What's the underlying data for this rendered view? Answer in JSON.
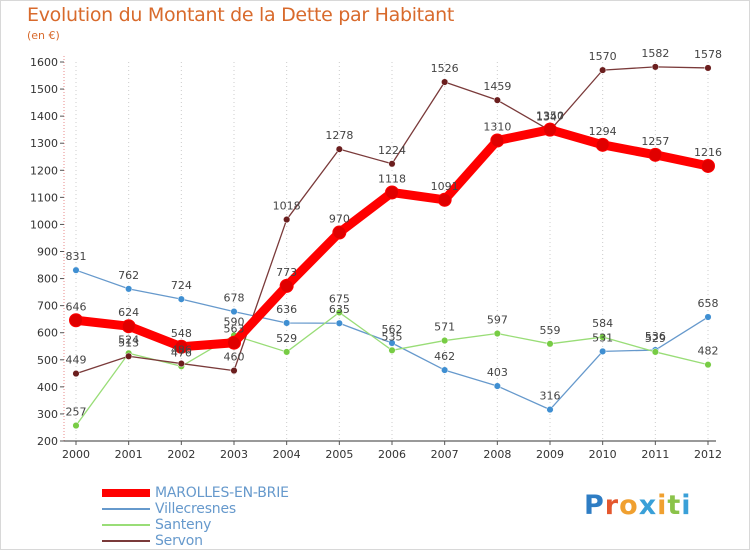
{
  "title": "Evolution du Montant de la Dette par Habitant",
  "subtitle": "(en €)",
  "logo": {
    "text": "Proxiti",
    "letter_colors": [
      "#2e7dc4",
      "#e4572e",
      "#f0a030",
      "#3aa0d8",
      "#f0a030",
      "#8bc34a",
      "#3aa0d8"
    ]
  },
  "chart_data": {
    "type": "line",
    "categories": [
      "2000",
      "2001",
      "2002",
      "2003",
      "2004",
      "2005",
      "2006",
      "2007",
      "2008",
      "2009",
      "2010",
      "2011",
      "2012"
    ],
    "ylim": [
      200,
      1600
    ],
    "yticks": [
      200,
      300,
      400,
      500,
      600,
      700,
      800,
      900,
      1000,
      1100,
      1200,
      1300,
      1400,
      1500,
      1600
    ],
    "grid": {
      "vertical": true,
      "style": "dotted"
    },
    "legend_position": "bottom-left",
    "series": [
      {
        "name": "MAROLLES-EN-BRIE",
        "color": "#ff0000",
        "marker": "#e00000",
        "values": [
          646,
          624,
          548,
          563,
          773,
          970,
          1118,
          1091,
          1310,
          1350,
          1294,
          1257,
          1216
        ]
      },
      {
        "name": "Villecresnes",
        "color": "#6699cc",
        "marker": "#3f8fd2",
        "values": [
          831,
          762,
          724,
          678,
          636,
          635,
          562,
          462,
          403,
          316,
          531,
          536,
          658
        ]
      },
      {
        "name": "Santeny",
        "color": "#99dd77",
        "marker": "#77cc44",
        "values": [
          257,
          524,
          476,
          590,
          529,
          675,
          535,
          571,
          597,
          559,
          584,
          529,
          482
        ]
      },
      {
        "name": "Servon",
        "color": "#7a3a3a",
        "marker": "#6b1e1e",
        "values": [
          449,
          513,
          486,
          460,
          1018,
          1278,
          1224,
          1526,
          1459,
          1347,
          1570,
          1582,
          1578
        ]
      }
    ],
    "data_labels": [
      [
        "646",
        "624",
        "548",
        "563",
        "773",
        "970",
        "1118",
        "1091",
        "1310",
        "1350",
        "1294",
        "1257",
        "1216"
      ],
      [
        "831",
        "762",
        "724",
        "678",
        "636",
        "635",
        "562",
        "462",
        "403",
        "316",
        "531",
        "536",
        "658"
      ],
      [
        "257",
        "524",
        "476",
        "590",
        "529",
        "675",
        "535",
        "571",
        "597",
        "559",
        "584",
        "529",
        "482"
      ],
      [
        "449",
        "513",
        "486",
        "460",
        "1018",
        "1278",
        "1224",
        "1526",
        "1459",
        "1347",
        "1570",
        "1582",
        "1578"
      ]
    ]
  }
}
